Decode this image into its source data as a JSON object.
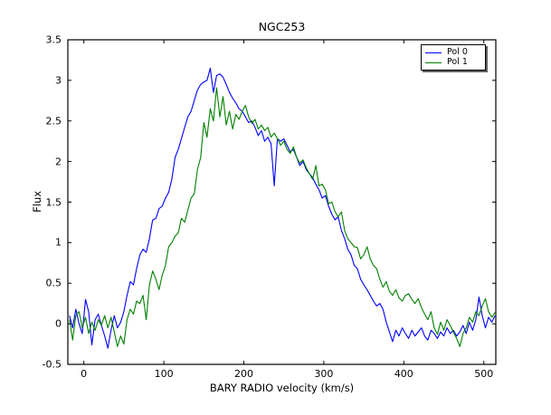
{
  "accent_colors": {
    "pol0": "#0000ff",
    "pol1": "#008000",
    "frame": "#000000",
    "background": "#ffffff"
  },
  "legend": {
    "position": "upper right",
    "entries": [
      {
        "label": "Pol 0",
        "color": "#0000ff"
      },
      {
        "label": "Pol 1",
        "color": "#008000"
      }
    ]
  },
  "chart_data": {
    "type": "line",
    "title": "NGC253",
    "xlabel": "BARY RADIO velocity (km/s)",
    "ylabel": "Flux",
    "xlim": [
      -20,
      515
    ],
    "ylim": [
      -0.5,
      3.5
    ],
    "grid": false,
    "legend_position": "upper right",
    "xticks": {
      "values": [
        0,
        100,
        200,
        300,
        400,
        500
      ],
      "labels": [
        "0",
        "100",
        "200",
        "300",
        "400",
        "500"
      ]
    },
    "yticks": {
      "values": [
        -0.5,
        0,
        0.5,
        1,
        1.5,
        2,
        2.5,
        3,
        3.5
      ],
      "labels": [
        "-0.5",
        "0",
        "0.5",
        "1",
        "1.5",
        "2",
        "2.5",
        "3",
        "3.5"
      ]
    },
    "x": [
      -18,
      -14,
      -10,
      -6,
      -2,
      2,
      6,
      10,
      14,
      18,
      22,
      26,
      30,
      34,
      38,
      42,
      46,
      50,
      54,
      58,
      62,
      66,
      70,
      74,
      78,
      82,
      86,
      90,
      94,
      98,
      102,
      106,
      110,
      114,
      118,
      122,
      126,
      130,
      134,
      138,
      142,
      146,
      150,
      154,
      158,
      162,
      166,
      170,
      174,
      178,
      182,
      186,
      190,
      194,
      198,
      202,
      206,
      210,
      214,
      218,
      222,
      226,
      230,
      234,
      238,
      242,
      246,
      250,
      254,
      258,
      262,
      266,
      270,
      274,
      278,
      282,
      286,
      290,
      294,
      298,
      302,
      306,
      310,
      314,
      318,
      322,
      326,
      330,
      334,
      338,
      342,
      346,
      350,
      354,
      358,
      362,
      366,
      370,
      374,
      378,
      382,
      386,
      390,
      394,
      398,
      402,
      406,
      410,
      414,
      418,
      422,
      426,
      430,
      434,
      438,
      442,
      446,
      450,
      454,
      458,
      462,
      466,
      470,
      474,
      478,
      482,
      486,
      490,
      494,
      498,
      502,
      506,
      510,
      514
    ],
    "series": [
      {
        "name": "Pol 0",
        "color": "#0000ff",
        "values": [
          0.1,
          -0.05,
          0.18,
          0.0,
          -0.12,
          0.3,
          0.15,
          -0.26,
          0.05,
          0.12,
          -0.02,
          -0.15,
          -0.3,
          -0.08,
          0.1,
          -0.05,
          0.02,
          0.15,
          0.35,
          0.52,
          0.48,
          0.68,
          0.85,
          0.92,
          0.88,
          1.05,
          1.28,
          1.3,
          1.42,
          1.45,
          1.55,
          1.62,
          1.78,
          2.05,
          2.15,
          2.28,
          2.42,
          2.55,
          2.62,
          2.75,
          2.88,
          2.95,
          2.98,
          3.0,
          3.15,
          2.85,
          3.06,
          3.08,
          3.04,
          2.95,
          2.85,
          2.78,
          2.72,
          2.65,
          2.62,
          2.55,
          2.48,
          2.5,
          2.42,
          2.32,
          2.38,
          2.25,
          2.3,
          2.22,
          1.7,
          2.28,
          2.25,
          2.28,
          2.2,
          2.12,
          2.15,
          2.05,
          1.95,
          2.0,
          1.9,
          1.85,
          1.8,
          1.72,
          1.65,
          1.55,
          1.58,
          1.45,
          1.35,
          1.28,
          1.32,
          1.15,
          1.05,
          0.92,
          0.85,
          0.72,
          0.68,
          0.55,
          0.48,
          0.42,
          0.35,
          0.28,
          0.22,
          0.25,
          0.18,
          0.02,
          -0.1,
          -0.22,
          -0.08,
          -0.15,
          -0.05,
          -0.12,
          -0.18,
          -0.08,
          -0.15,
          -0.1,
          -0.05,
          -0.15,
          -0.2,
          -0.08,
          -0.12,
          -0.18,
          -0.1,
          -0.15,
          -0.05,
          -0.12,
          -0.08,
          -0.15,
          -0.1,
          -0.02,
          -0.12,
          0.02,
          -0.08,
          0.05,
          0.33,
          0.1,
          -0.05,
          0.08,
          0.02,
          0.1
        ]
      },
      {
        "name": "Pol 1",
        "color": "#008000",
        "values": [
          0.05,
          -0.2,
          0.1,
          0.15,
          -0.05,
          0.08,
          -0.12,
          0.02,
          -0.08,
          0.05,
          -0.02,
          0.1,
          -0.05,
          0.08,
          -0.1,
          -0.28,
          -0.15,
          -0.25,
          0.05,
          0.18,
          0.12,
          0.28,
          0.25,
          0.35,
          0.05,
          0.48,
          0.65,
          0.55,
          0.42,
          0.6,
          0.72,
          0.95,
          1.0,
          1.08,
          1.12,
          1.3,
          1.25,
          1.4,
          1.55,
          1.6,
          1.9,
          2.05,
          2.48,
          2.3,
          2.65,
          2.5,
          2.91,
          2.55,
          2.8,
          2.45,
          2.62,
          2.4,
          2.58,
          2.52,
          2.62,
          2.69,
          2.55,
          2.47,
          2.52,
          2.4,
          2.45,
          2.38,
          2.42,
          2.3,
          2.35,
          2.28,
          2.2,
          2.25,
          2.15,
          2.1,
          2.18,
          2.05,
          1.98,
          2.02,
          1.92,
          1.85,
          1.78,
          1.95,
          1.7,
          1.72,
          1.65,
          1.48,
          1.5,
          1.38,
          1.32,
          1.38,
          1.15,
          1.05,
          1.0,
          0.95,
          0.94,
          0.8,
          0.85,
          0.95,
          0.8,
          0.72,
          0.68,
          0.55,
          0.45,
          0.52,
          0.4,
          0.35,
          0.42,
          0.32,
          0.28,
          0.35,
          0.37,
          0.3,
          0.25,
          0.31,
          0.2,
          0.12,
          0.05,
          0.15,
          -0.05,
          -0.13,
          0.02,
          -0.08,
          0.05,
          -0.02,
          -0.1,
          -0.18,
          -0.28,
          -0.12,
          -0.05,
          0.08,
          0.02,
          0.15,
          0.1,
          0.22,
          0.31,
          0.15,
          0.08,
          0.14
        ]
      }
    ]
  }
}
